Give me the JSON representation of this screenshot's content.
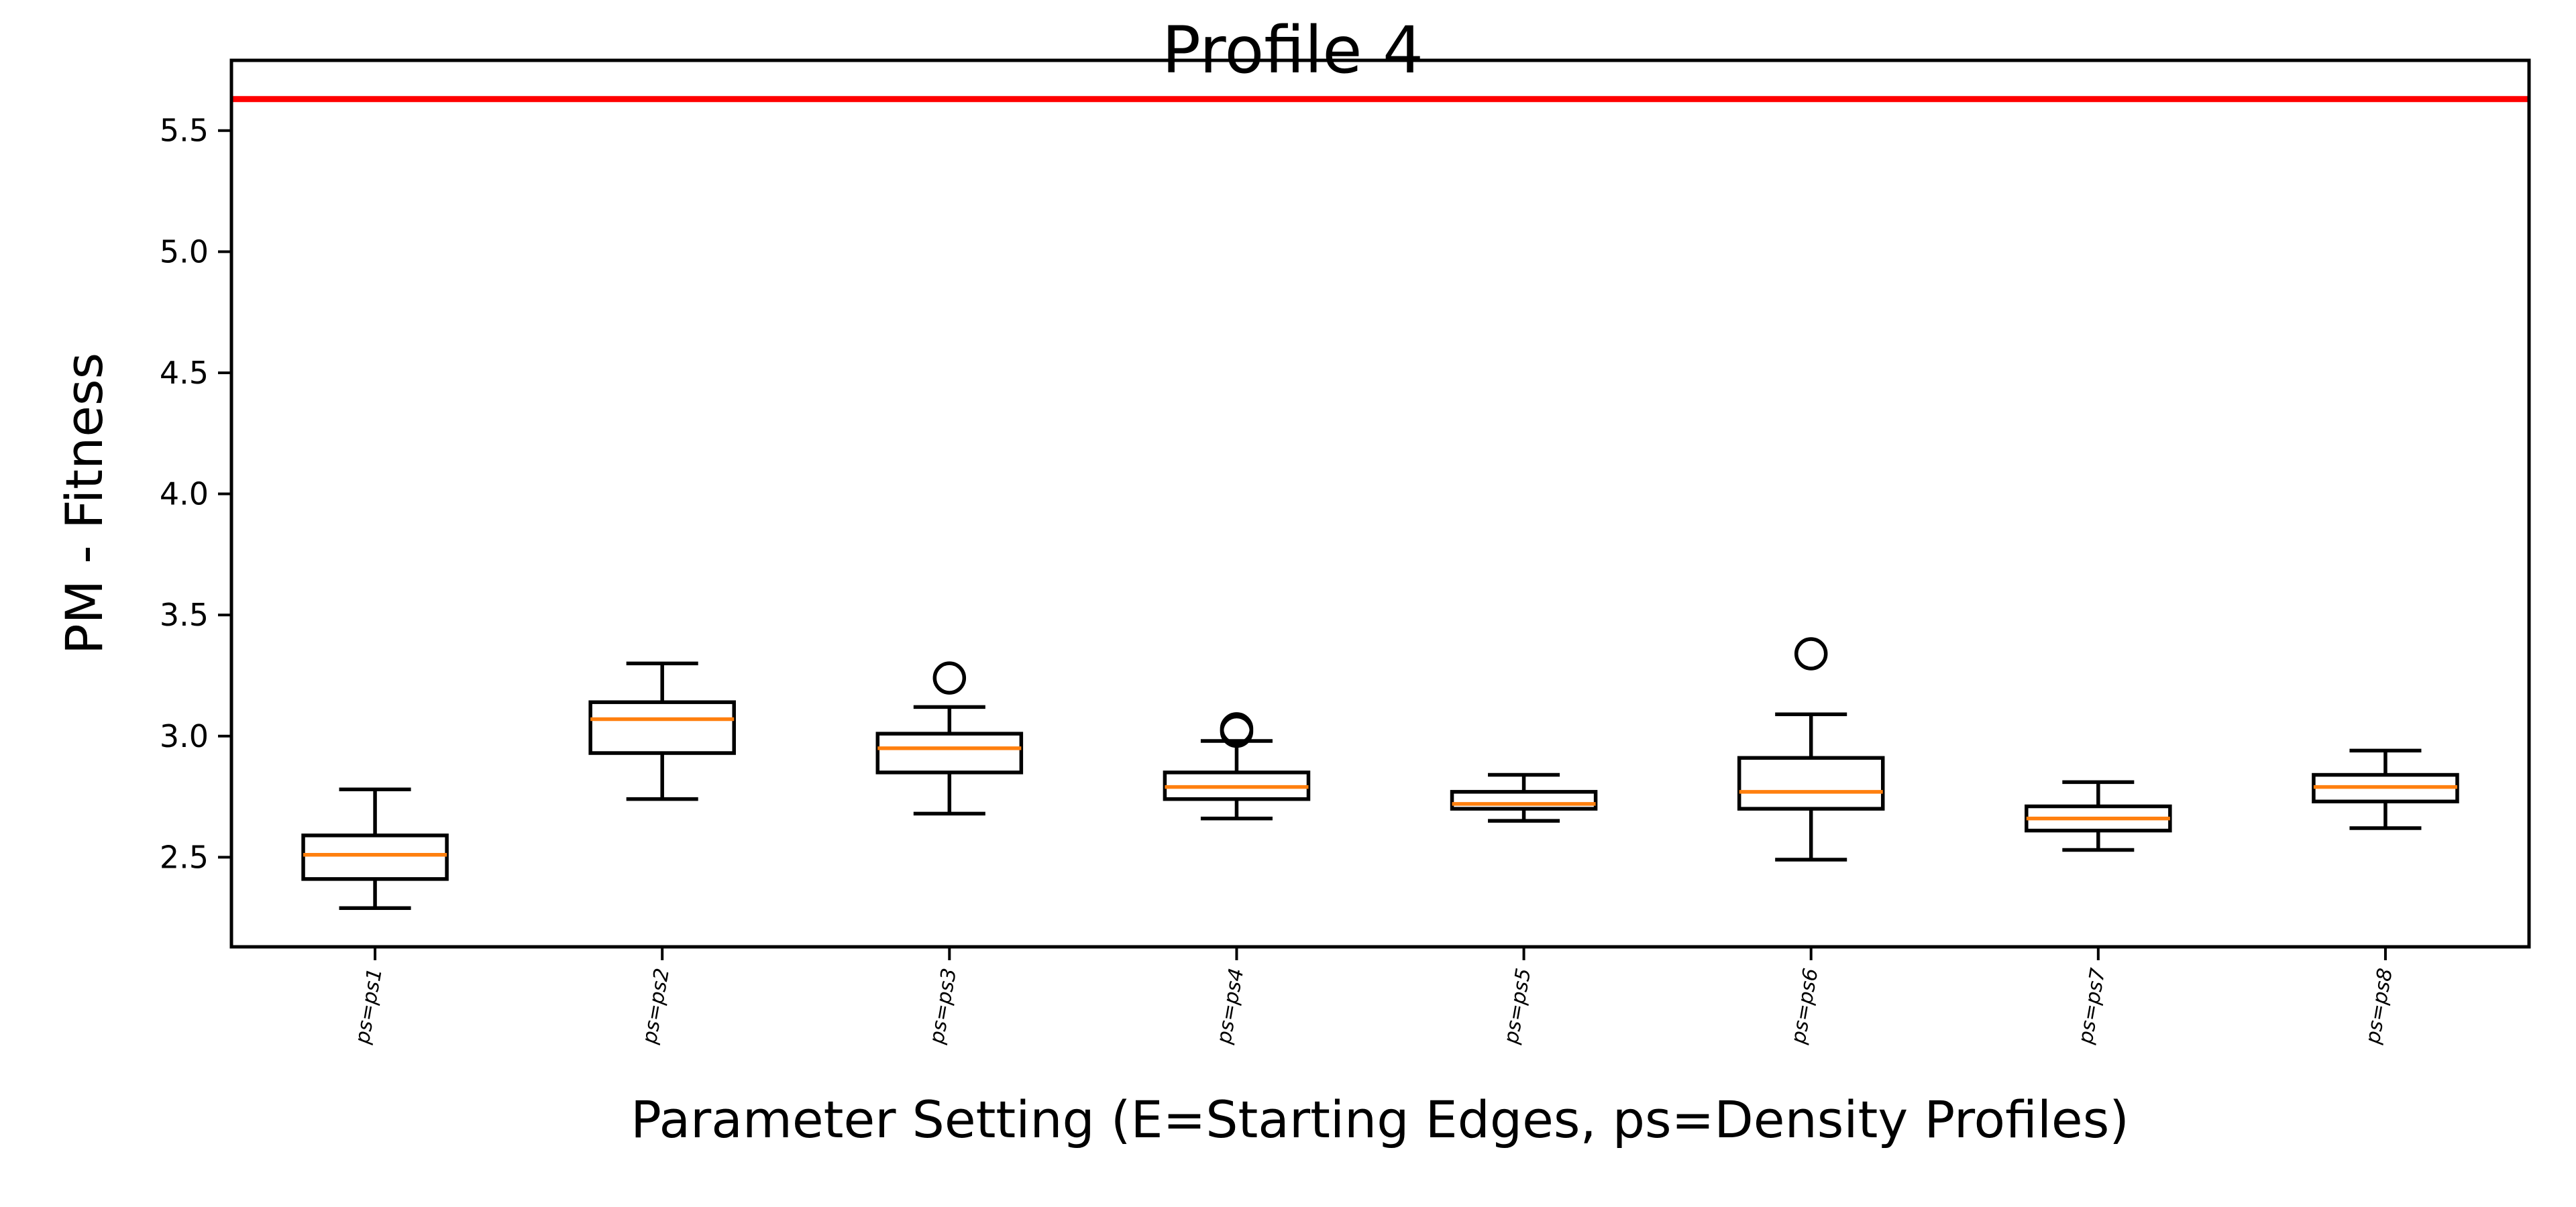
{
  "chart_data": {
    "type": "box",
    "title": "Profile 4",
    "xlabel": "Parameter Setting (E=Starting Edges, ps=Density Profiles)",
    "ylabel": "PM - Fitness",
    "ylim": [
      2.13,
      5.79
    ],
    "yticks": [
      "2.5",
      "3.0",
      "3.5",
      "4.0",
      "4.5",
      "5.0",
      "5.5"
    ],
    "yticks_values": [
      2.5,
      3.0,
      3.5,
      4.0,
      4.5,
      5.0,
      5.5
    ],
    "categories": [
      "ps=ps1",
      "ps=ps2",
      "ps=ps3",
      "ps=ps4",
      "ps=ps5",
      "ps=ps6",
      "ps=ps7",
      "ps=ps8"
    ],
    "reference_line": {
      "value": 5.63,
      "color": "#ff0000"
    },
    "grid": false,
    "colors": {
      "box": "#000000",
      "median": "#ff7f0e",
      "reference": "#ff0000"
    },
    "boxes": [
      {
        "whisker_low": 2.29,
        "q1": 2.41,
        "median": 2.51,
        "q3": 2.59,
        "whisker_high": 2.78,
        "outliers": []
      },
      {
        "whisker_low": 2.74,
        "q1": 2.93,
        "median": 3.07,
        "q3": 3.14,
        "whisker_high": 3.3,
        "outliers": []
      },
      {
        "whisker_low": 2.68,
        "q1": 2.85,
        "median": 2.95,
        "q3": 3.01,
        "whisker_high": 3.12,
        "outliers": [
          3.24
        ]
      },
      {
        "whisker_low": 2.66,
        "q1": 2.74,
        "median": 2.79,
        "q3": 2.85,
        "whisker_high": 2.98,
        "outliers": [
          3.02,
          3.03
        ]
      },
      {
        "whisker_low": 2.65,
        "q1": 2.7,
        "median": 2.72,
        "q3": 2.77,
        "whisker_high": 2.84,
        "outliers": []
      },
      {
        "whisker_low": 2.49,
        "q1": 2.7,
        "median": 2.77,
        "q3": 2.91,
        "whisker_high": 3.09,
        "outliers": [
          3.34
        ]
      },
      {
        "whisker_low": 2.53,
        "q1": 2.61,
        "median": 2.66,
        "q3": 2.71,
        "whisker_high": 2.81,
        "outliers": []
      },
      {
        "whisker_low": 2.62,
        "q1": 2.73,
        "median": 2.79,
        "q3": 2.84,
        "whisker_high": 2.94,
        "outliers": []
      }
    ]
  }
}
